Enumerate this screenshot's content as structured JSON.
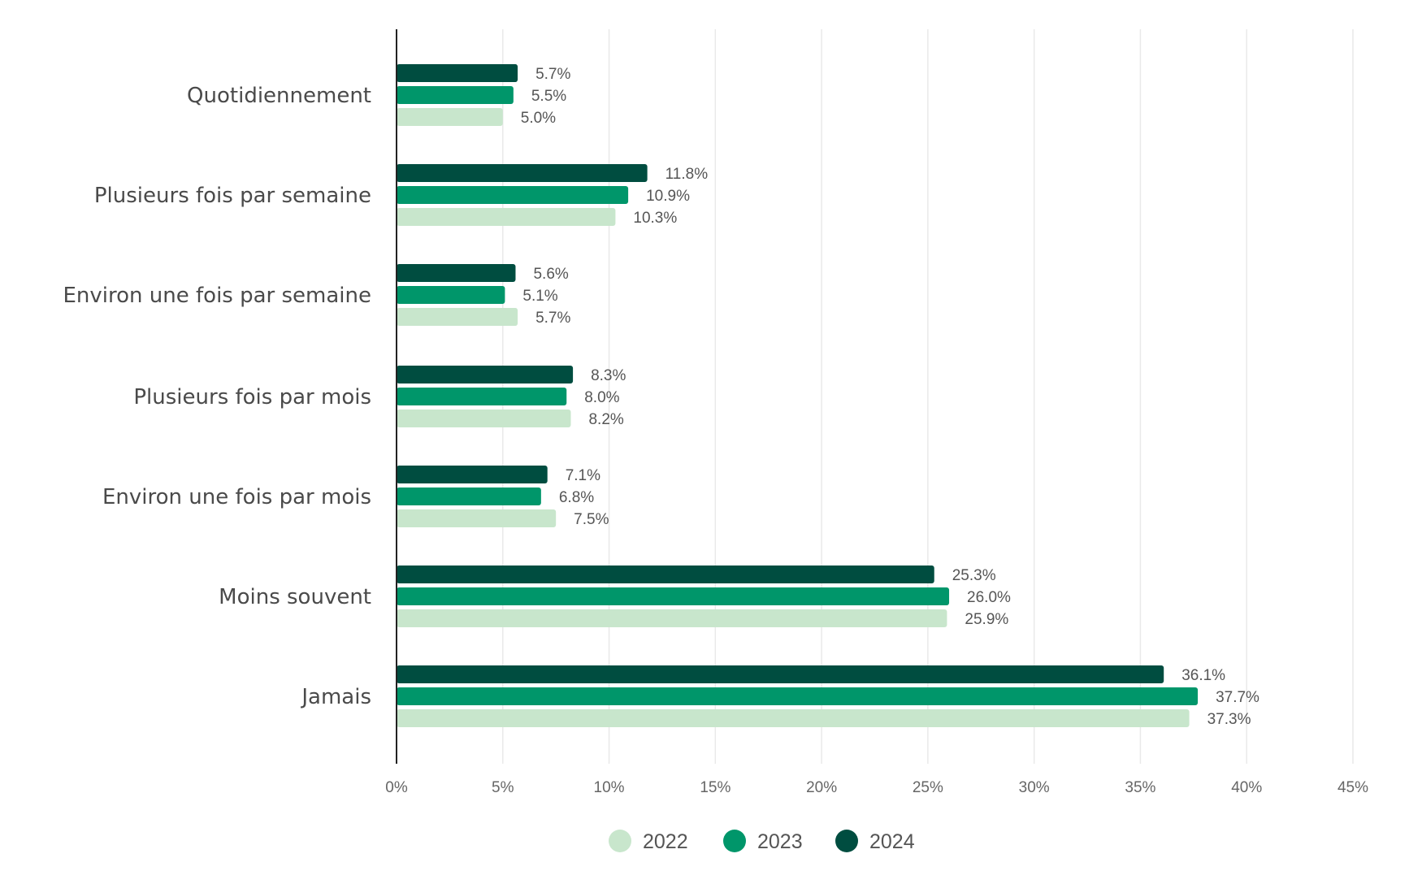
{
  "chart_data": {
    "type": "bar",
    "orientation": "horizontal",
    "categories": [
      "Quotidiennement",
      "Plusieurs fois par semaine",
      "Environ une fois par semaine",
      "Plusieurs fois par mois",
      "Environ une fois par mois",
      "Moins souvent",
      "Jamais"
    ],
    "series": [
      {
        "name": "2024",
        "color": "#004d40",
        "values": [
          5.7,
          11.8,
          5.6,
          8.3,
          7.1,
          25.3,
          36.1
        ]
      },
      {
        "name": "2023",
        "color": "#00966a",
        "values": [
          5.5,
          10.9,
          5.1,
          8.0,
          6.8,
          26.0,
          37.7
        ]
      },
      {
        "name": "2022",
        "color": "#c8e6cc",
        "values": [
          5.0,
          10.3,
          5.7,
          8.2,
          7.5,
          25.9,
          37.3
        ]
      }
    ],
    "value_labels": [
      [
        "5.7%",
        "11.8%",
        "5.6%",
        "8.3%",
        "7.1%",
        "25.3%",
        "36.1%"
      ],
      [
        "5.5%",
        "10.9%",
        "5.1%",
        "8.0%",
        "6.8%",
        "26.0%",
        "37.7%"
      ],
      [
        "5.0%",
        "10.3%",
        "5.7%",
        "8.2%",
        "7.5%",
        "25.9%",
        "37.3%"
      ]
    ],
    "xlim": [
      0,
      45
    ],
    "x_ticks": [
      0,
      5,
      10,
      15,
      20,
      25,
      30,
      35,
      40,
      45
    ],
    "x_tick_labels": [
      "0%",
      "5%",
      "10%",
      "15%",
      "20%",
      "25%",
      "30%",
      "35%",
      "40%",
      "45%"
    ],
    "grid": "vertical",
    "legend_position": "bottom",
    "legend": [
      {
        "name": "2022",
        "color": "#c8e6cc"
      },
      {
        "name": "2023",
        "color": "#00966a"
      },
      {
        "name": "2024",
        "color": "#004d40"
      }
    ],
    "title": "",
    "xlabel": "",
    "ylabel": ""
  }
}
